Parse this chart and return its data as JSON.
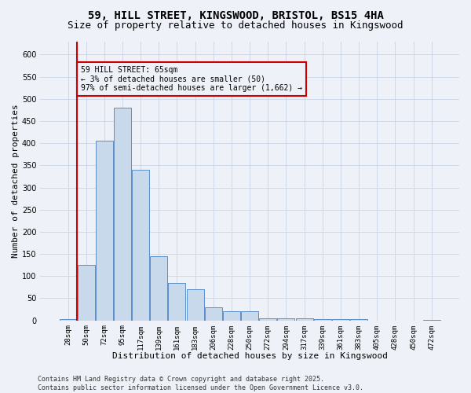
{
  "title_line1": "59, HILL STREET, KINGSWOOD, BRISTOL, BS15 4HA",
  "title_line2": "Size of property relative to detached houses in Kingswood",
  "xlabel": "Distribution of detached houses by size in Kingswood",
  "ylabel": "Number of detached properties",
  "categories": [
    "28sqm",
    "50sqm",
    "72sqm",
    "95sqm",
    "117sqm",
    "139sqm",
    "161sqm",
    "183sqm",
    "206sqm",
    "228sqm",
    "250sqm",
    "272sqm",
    "294sqm",
    "317sqm",
    "339sqm",
    "361sqm",
    "383sqm",
    "405sqm",
    "428sqm",
    "450sqm",
    "472sqm"
  ],
  "values": [
    2,
    125,
    405,
    480,
    340,
    145,
    85,
    70,
    30,
    20,
    20,
    5,
    5,
    5,
    3,
    3,
    2,
    0,
    0,
    0,
    1
  ],
  "ylim": [
    0,
    630
  ],
  "yticks": [
    0,
    50,
    100,
    150,
    200,
    250,
    300,
    350,
    400,
    450,
    500,
    550,
    600
  ],
  "bar_color": "#c9d9ec",
  "bar_edge_color": "#5b8fc9",
  "grid_color": "#c8d4e3",
  "bg_color": "#eef2f8",
  "annotation_text": "59 HILL STREET: 65sqm\n← 3% of detached houses are smaller (50)\n97% of semi-detached houses are larger (1,662) →",
  "vline_x_idx": 1,
  "vline_color": "#cc0000",
  "footer_text": "Contains HM Land Registry data © Crown copyright and database right 2025.\nContains public sector information licensed under the Open Government Licence v3.0.",
  "title_fontsize": 10,
  "subtitle_fontsize": 9,
  "tick_fontsize": 6.5,
  "label_fontsize": 8,
  "annot_fontsize": 7,
  "footer_fontsize": 6
}
